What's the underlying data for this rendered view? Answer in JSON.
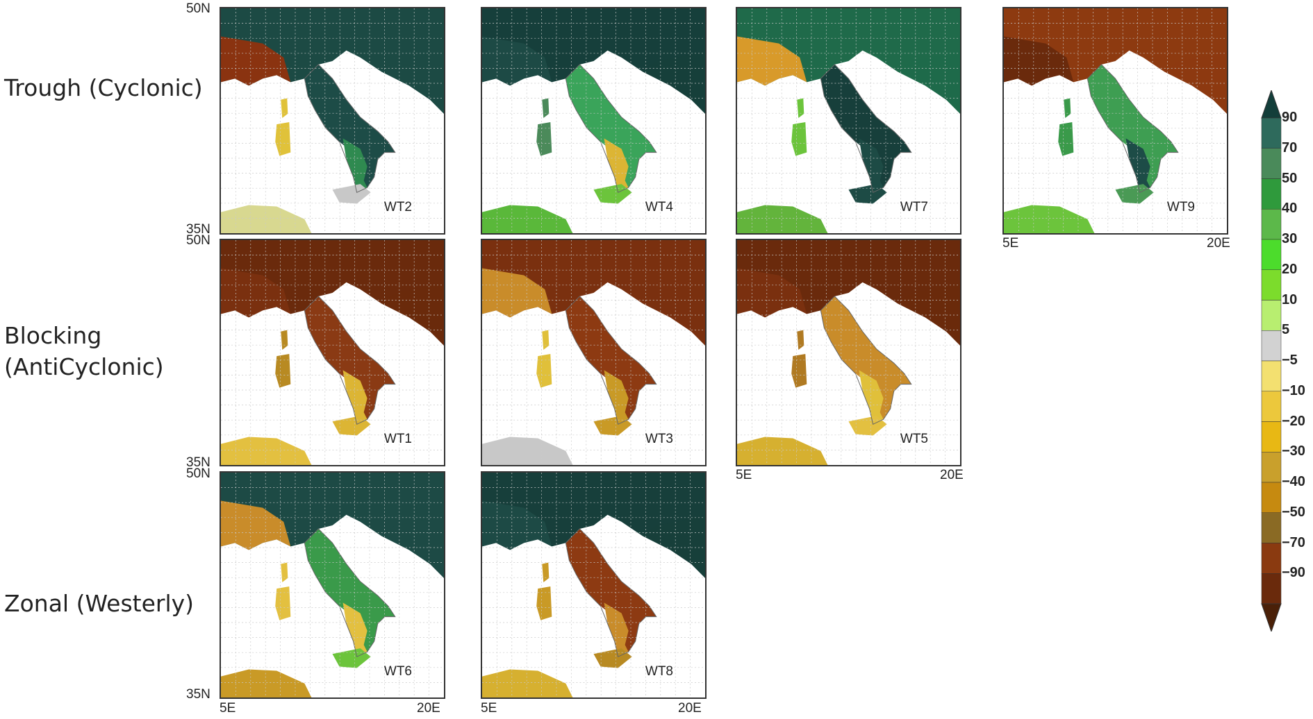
{
  "rows": [
    {
      "label_lines": [
        "Trough (Cyclonic)"
      ]
    },
    {
      "label_lines": [
        "Blocking",
        "(AntiCyclonic)"
      ]
    },
    {
      "label_lines": [
        "Zonal (Westerly)"
      ]
    }
  ],
  "panels": [
    {
      "label": "WT2",
      "fills": {
        "north": "#1c4a44",
        "west": "#8a3310",
        "peninsula": "#1d4c47",
        "south": "#2f8a50",
        "sardinia": "#e0c23a",
        "sicily": "#c8c8c8",
        "africa": "#d8d890"
      }
    },
    {
      "label": "WT4",
      "fills": {
        "north": "#163f3b",
        "west": "#1d4a45",
        "peninsula": "#3aa45a",
        "south": "#dcb534",
        "sardinia": "#4b8a5a",
        "sicily": "#6cc43c",
        "africa": "#5ab83a"
      }
    },
    {
      "label": "WT7",
      "fills": {
        "north": "#1f6a4a",
        "west": "#d89a2a",
        "peninsula": "#173f3b",
        "south": "#1d4b45",
        "sardinia": "#6cc43c",
        "sicily": "#1d4b45",
        "africa": "#63b43c"
      }
    },
    {
      "label": "WT9",
      "fills": {
        "north": "#8d3a10",
        "west": "#6a2a0c",
        "peninsula": "#3e9e52",
        "south": "#1d4c47",
        "sardinia": "#3a9a4a",
        "sicily": "#4a9a55",
        "africa": "#6cc43c"
      }
    },
    {
      "label": "WT1",
      "fills": {
        "north": "#6a2a0c",
        "west": "#7a300f",
        "peninsula": "#8a3a14",
        "south": "#dcb534",
        "sardinia": "#b88a22",
        "sicily": "#dcb534",
        "africa": "#e3c040"
      }
    },
    {
      "label": "WT3",
      "fills": {
        "north": "#7a300f",
        "west": "#c98c2a",
        "peninsula": "#8d3a12",
        "south": "#c99a26",
        "sardinia": "#e0c03a",
        "sicily": "#c99a26",
        "africa": "#c8c8c8"
      }
    },
    {
      "label": "WT5",
      "fills": {
        "north": "#6a2a0c",
        "west": "#7a300f",
        "peninsula": "#c98c2a",
        "south": "#e0c03a",
        "sardinia": "#b07a22",
        "sicily": "#e3c040",
        "africa": "#d6b030"
      }
    },
    {
      "label": "WT6",
      "fills": {
        "north": "#1d4a45",
        "west": "#c98c2a",
        "peninsula": "#3a9a4a",
        "south": "#e3c040",
        "sardinia": "#e3c040",
        "sicily": "#6cc43c",
        "africa": "#c99a26"
      }
    },
    {
      "label": "WT8",
      "fills": {
        "north": "#173f3b",
        "west": "#1d4a45",
        "peninsula": "#8d3a12",
        "south": "#c98c2a",
        "sardinia": "#c99a26",
        "sicily": "#b88a22",
        "africa": "#d6b030"
      }
    }
  ],
  "axis": {
    "lat_top": "50N",
    "lat_bottom": "35N",
    "lon_left": "5E",
    "lon_right": "20E"
  },
  "colorbar": {
    "labels": [
      "90",
      "70",
      "50",
      "40",
      "30",
      "20",
      "10",
      "5",
      "−5",
      "−10",
      "−20",
      "−30",
      "−40",
      "−50",
      "−70",
      "−90"
    ],
    "colors": [
      "#133e3a",
      "#2e6a5c",
      "#4a8a5a",
      "#2f9a3c",
      "#5cb84a",
      "#4cdc2c",
      "#7cdc2c",
      "#b8ee70",
      "#d2d2d2",
      "#f3e070",
      "#ecc83c",
      "#e8b814",
      "#c9a02c",
      "#c68a10",
      "#8a6a24",
      "#8a3a10",
      "#6a2a0c",
      "#4a2008"
    ]
  }
}
